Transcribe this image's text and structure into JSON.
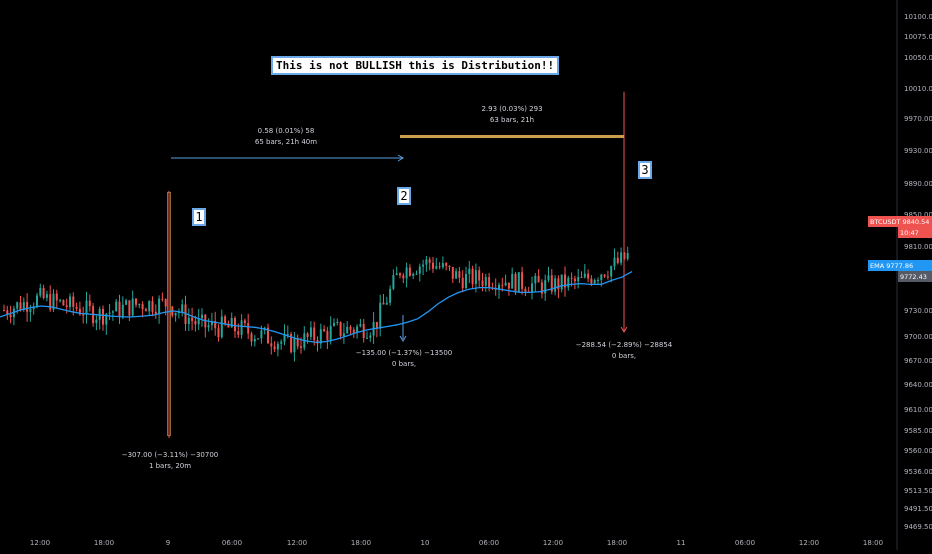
{
  "chart_data": {
    "type": "candlestick",
    "symbol": "BTCUSDT",
    "title": "This is not BULLISH this is Distribution!!",
    "x_ticks": [
      "12:00",
      "18:00",
      "9",
      "06:00",
      "12:00",
      "18:00",
      "10",
      "06:00",
      "12:00",
      "18:00",
      "11",
      "06:00",
      "12:00",
      "18:00"
    ],
    "y_ticks": [
      10100.0,
      10075.0,
      10050.0,
      10010.0,
      9970.0,
      9930.0,
      9890.0,
      9850.0,
      9810.0,
      9770.0,
      9730.0,
      9700.0,
      9670.0,
      9640.0,
      9610.0,
      9585.0,
      9560.0,
      9536.0,
      9513.5,
      9491.5,
      9469.5
    ],
    "y_tick_labels": [
      "10100.00",
      "10075.00",
      "10050.00",
      "10010.00",
      "9970.00",
      "9930.00",
      "9890.00",
      "9850.00",
      "9810.00",
      "9770.00",
      "9730.00",
      "9700.00",
      "9670.00",
      "9640.00",
      "9610.00",
      "9585.00",
      "9560.00",
      "9536.00",
      "9513.50",
      "9491.50",
      "9469.50"
    ],
    "ema": {
      "name": "EMA",
      "value_label": "9777.86",
      "values": [
        9722,
        9726,
        9730,
        9733,
        9735,
        9734,
        9731,
        9728,
        9726,
        9725,
        9724,
        9723,
        9722,
        9722,
        9723,
        9724,
        9727,
        9729,
        9727,
        9722,
        9718,
        9716,
        9714,
        9712,
        9711,
        9710,
        9708,
        9705,
        9701,
        9697,
        9694,
        9692,
        9693,
        9696,
        9700,
        9704,
        9707,
        9709,
        9711,
        9713,
        9716,
        9720,
        9728,
        9738,
        9746,
        9752,
        9756,
        9758,
        9758,
        9756,
        9754,
        9752,
        9752,
        9753,
        9756,
        9760,
        9762,
        9763,
        9762,
        9762,
        9767,
        9771,
        9778
      ]
    },
    "price_labels": [
      {
        "text": "BTCUSDT",
        "value": "9840.54"
      },
      {
        "text": "",
        "value": "10:47"
      },
      {
        "text": "EMA",
        "value": "9777.86"
      },
      {
        "text": "",
        "value": "9772.43"
      }
    ],
    "annotations": {
      "title_callout": "This is not BULLISH this is Distribution!!",
      "markers": [
        "1",
        "2",
        "3"
      ],
      "measure_1": {
        "line1": "−307.00 (−3.11%) −30700",
        "line2": "1 bars, 20m"
      },
      "measure_2": {
        "line1": "0.58 (0.01%) 58",
        "line2": "65 bars, 21h 40m"
      },
      "measure_3": {
        "line1": "2.93 (0.03%) 293",
        "line2": "63 bars, 21h"
      },
      "measure_4": {
        "line1": "−135.00 (−1.37%) −13500",
        "line2": "0 bars,"
      },
      "measure_5": {
        "line1": "−288.54 (−2.89%) −28854",
        "line2": "0 bars,"
      }
    },
    "colors": {
      "background": "#000000",
      "up": "#26a69a",
      "down": "#ef5350",
      "ema": "#2196f3",
      "axis_text": "#b2b5be",
      "symbol_label": "#ef5350",
      "ema_label": "#2196f3",
      "orange_line": "#c8a050"
    },
    "legend": "none",
    "grid": false
  }
}
